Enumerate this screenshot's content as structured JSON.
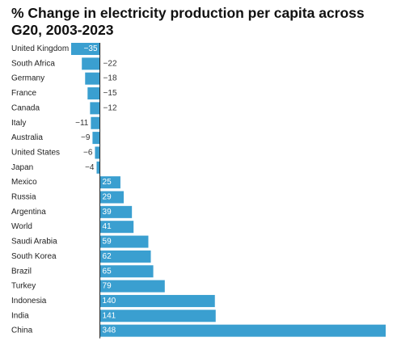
{
  "chart_data": {
    "type": "bar",
    "orientation": "horizontal",
    "title": "% Change in electricity production per capita across G20, 2003-2023",
    "xlabel": "",
    "ylabel": "",
    "categories": [
      "United Kingdom",
      "South Africa",
      "Germany",
      "France",
      "Canada",
      "Italy",
      "Australia",
      "United States",
      "Japan",
      "Mexico",
      "Russia",
      "Argentina",
      "World",
      "Saudi Arabia",
      "South Korea",
      "Brazil",
      "Turkey",
      "Indonesia",
      "India",
      "China"
    ],
    "values": [
      -35,
      -22,
      -18,
      -15,
      -12,
      -11,
      -9,
      -6,
      -4,
      25,
      29,
      39,
      41,
      59,
      62,
      65,
      79,
      140,
      141,
      348
    ],
    "value_labels": [
      "−35",
      "−22",
      "−18",
      "−15",
      "−12",
      "−11",
      "−9",
      "−6",
      "−4",
      "25",
      "29",
      "39",
      "41",
      "59",
      "62",
      "65",
      "79",
      "140",
      "141",
      "348"
    ],
    "xlim": [
      -35,
      348
    ],
    "grid": false,
    "legend": "none",
    "bar_color": "#3a9fd0",
    "label_inside_color": "#ffffff",
    "label_outside_color": "#333333"
  }
}
